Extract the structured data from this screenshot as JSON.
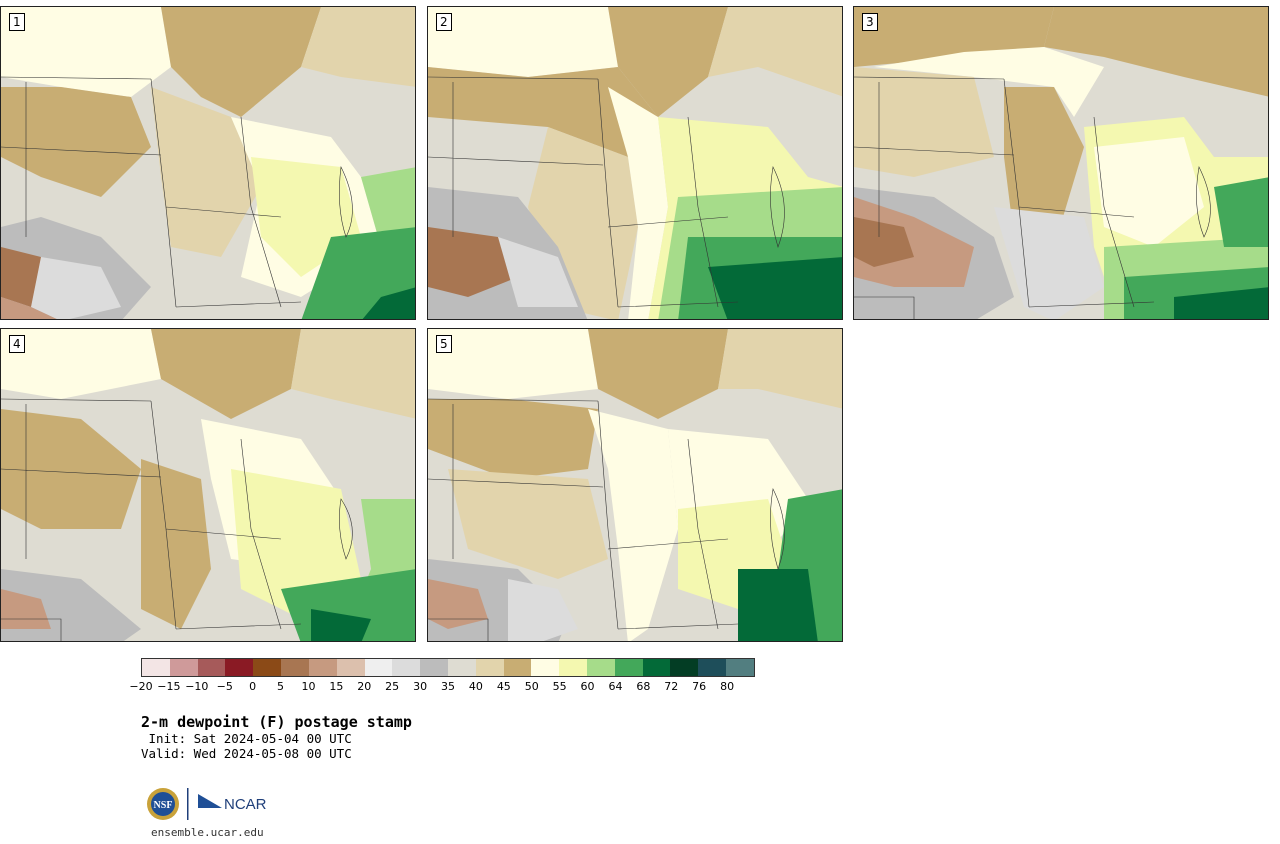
{
  "panels": [
    {
      "label": "1"
    },
    {
      "label": "2"
    },
    {
      "label": "3"
    },
    {
      "label": "4"
    },
    {
      "label": "5"
    }
  ],
  "colorbar": {
    "colors": [
      "#f3e5e5",
      "#cf9a9a",
      "#a65a5a",
      "#8a1a24",
      "#8b4a17",
      "#a87652",
      "#c69a80",
      "#dcc0ad",
      "#efefef",
      "#dcdcdc",
      "#bcbcbc",
      "#dedcd2",
      "#e2d4ac",
      "#c8ad73",
      "#fffde4",
      "#f4f8b0",
      "#a6dc8a",
      "#43a85a",
      "#036a38",
      "#033d24",
      "#1e4e5a",
      "#527e80"
    ],
    "tick_labels": [
      "−20",
      "−15",
      "−10",
      "−5",
      "0",
      "5",
      "10",
      "15",
      "20",
      "25",
      "30",
      "35",
      "40",
      "45",
      "50",
      "55",
      "60",
      "64",
      "68",
      "72",
      "76",
      "80"
    ]
  },
  "title": "2-m dewpoint (F) postage stamp",
  "init_line": " Init: Sat 2024-05-04 00 UTC",
  "valid_line": "Valid: Wed 2024-05-08 00 UTC",
  "logos": {
    "nsf": "NSF",
    "ncar": "NCAR"
  },
  "url": "ensemble.ucar.edu"
}
